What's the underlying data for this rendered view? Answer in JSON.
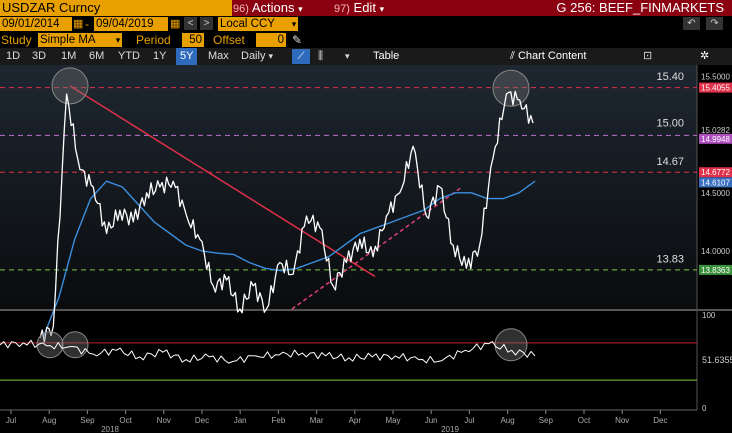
{
  "header": {
    "ticker": "USDZAR Curncy",
    "actions_num": "96)",
    "actions_label": "Actions",
    "edit_num": "97)",
    "edit_label": "Edit",
    "page_title": "G 256: BEEF_FINMARKETS"
  },
  "dates": {
    "start": "09/01/2014",
    "end": "09/04/2019",
    "currency": "Local CCY"
  },
  "study": {
    "label": "Study",
    "value": "Simple MA",
    "period_label": "Period",
    "period_value": "50",
    "offset_label": "Offset",
    "offset_value": "0"
  },
  "toolbar": {
    "ranges": [
      "1D",
      "3D",
      "1M",
      "6M",
      "YTD",
      "1Y",
      "5Y",
      "Max"
    ],
    "selected_range": "5Y",
    "interval": "Daily",
    "table_label": "Table",
    "chart_content_label": "Chart Content"
  },
  "colors": {
    "accent_orange": "#e8a000",
    "header_red": "#8b0010",
    "selected_blue": "#2e6bbd",
    "price_line": "#ffffff",
    "ma_line": "#3a8fe0",
    "trend_red": "#e0304a",
    "support_pink": "#e0407a",
    "level_green": "#7ac943"
  },
  "icons": [
    "settings-icon",
    "back-icon",
    "forward-icon",
    "pencil-icon",
    "line-chart-icon",
    "chart-content-icon",
    "gear-icon"
  ],
  "chart_data": [
    {
      "type": "line",
      "series": [
        {
          "values": [
            13.25,
            13.35,
            15.35,
            14.7,
            14.55,
            14.15,
            14.35,
            14.25,
            14.5,
            14.55,
            14.6,
            14.3,
            14.1,
            13.7,
            13.75,
            13.5,
            13.7,
            13.5,
            13.9,
            13.8,
            14.3,
            14.2,
            13.7,
            13.9,
            14.1,
            13.95,
            14.3,
            14.5,
            14.9,
            14.3,
            14.55,
            14.05,
            13.85,
            14.05,
            14.8,
            15.35,
            15.3,
            15.1
          ]
        },
        {
          "values": [
            13.25,
            13.6,
            14.1,
            14.45,
            14.6,
            14.55,
            14.4,
            14.25,
            14.15,
            14.05,
            14.0,
            13.98,
            13.97,
            13.9,
            13.85,
            13.83,
            13.85,
            13.9,
            13.95,
            14.05,
            14.15,
            14.2,
            14.25,
            14.3,
            14.35,
            14.45,
            14.5,
            14.5,
            14.45,
            14.45,
            14.5,
            14.6
          ]
        }
      ],
      "right_axis_labels": [
        "15.5000",
        "15.4055",
        "15.0282",
        "14.9948",
        "14.6772",
        "14.6107",
        "14.5000",
        "14.0000",
        "13.8363"
      ],
      "level_labels": [
        "15.40",
        "15.00",
        "14.67",
        "13.83"
      ],
      "x_labels": [
        "Jul",
        "Aug",
        "Sep",
        "Oct",
        "Nov",
        "Dec",
        "Jan",
        "Feb",
        "Mar",
        "Apr",
        "May",
        "Jun",
        "Jul",
        "Aug",
        "Sep",
        "Oct",
        "Nov",
        "Dec"
      ],
      "year_labels": [
        "2018",
        "2019"
      ],
      "grid": false
    },
    {
      "type": "line",
      "series": [
        {
          "values": [
            68,
            70,
            67,
            66,
            58,
            62,
            55,
            60,
            52,
            55,
            50,
            56,
            57,
            59,
            56,
            54,
            55,
            56,
            52,
            51,
            62,
            69,
            62,
            56
          ]
        }
      ],
      "right_axis_labels": [
        "100",
        "51.6355",
        "0"
      ],
      "ylim": [
        0,
        100
      ]
    }
  ]
}
